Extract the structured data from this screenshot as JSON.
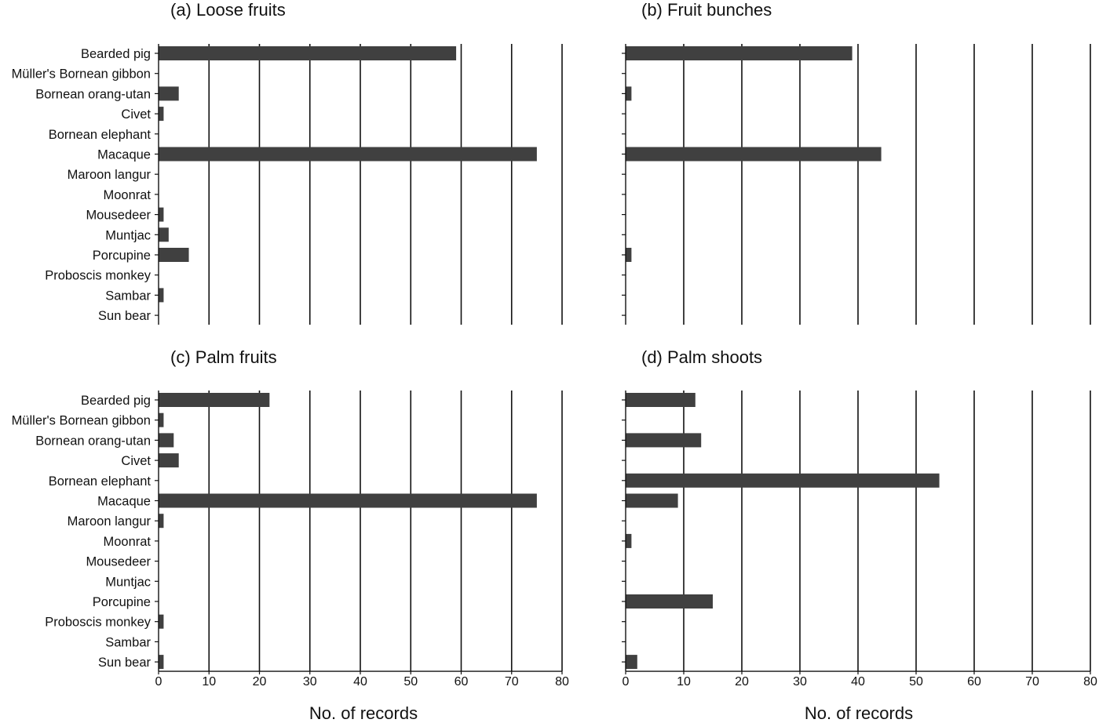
{
  "chart_data": [
    {
      "type": "bar",
      "orientation": "horizontal",
      "title": "(a) Loose fruits",
      "categories": [
        "Bearded pig",
        "Müller's Bornean gibbon",
        "Bornean orang-utan",
        "Civet",
        "Bornean elephant",
        "Macaque",
        "Maroon langur",
        "Moonrat",
        "Mousedeer",
        "Muntjac",
        "Porcupine",
        "Proboscis monkey",
        "Sambar",
        "Sun bear"
      ],
      "values": [
        59,
        0,
        4,
        1,
        0,
        75,
        0,
        0,
        1,
        2,
        6,
        0,
        1,
        0
      ],
      "xlim": [
        0,
        80
      ],
      "xticks": [
        0,
        10,
        20,
        30,
        40,
        50,
        60,
        70,
        80
      ],
      "show_tick_labels": false,
      "show_category_labels": true,
      "xlabel": "",
      "grid": "vertical",
      "bar_color": "#404040"
    },
    {
      "type": "bar",
      "orientation": "horizontal",
      "title": "(b) Fruit bunches",
      "categories": [
        "Bearded pig",
        "Müller's Bornean gibbon",
        "Bornean orang-utan",
        "Civet",
        "Bornean elephant",
        "Macaque",
        "Maroon langur",
        "Moonrat",
        "Mousedeer",
        "Muntjac",
        "Porcupine",
        "Proboscis monkey",
        "Sambar",
        "Sun bear"
      ],
      "values": [
        39,
        0,
        1,
        0,
        0,
        44,
        0,
        0,
        0,
        0,
        1,
        0,
        0,
        0
      ],
      "xlim": [
        0,
        80
      ],
      "xticks": [
        0,
        10,
        20,
        30,
        40,
        50,
        60,
        70,
        80
      ],
      "show_tick_labels": false,
      "show_category_labels": false,
      "xlabel": "",
      "grid": "vertical",
      "bar_color": "#404040"
    },
    {
      "type": "bar",
      "orientation": "horizontal",
      "title": "(c) Palm fruits",
      "categories": [
        "Bearded pig",
        "Müller's Bornean gibbon",
        "Bornean orang-utan",
        "Civet",
        "Bornean elephant",
        "Macaque",
        "Maroon langur",
        "Moonrat",
        "Mousedeer",
        "Muntjac",
        "Porcupine",
        "Proboscis monkey",
        "Sambar",
        "Sun bear"
      ],
      "values": [
        22,
        1,
        3,
        4,
        0,
        75,
        1,
        0,
        0,
        0,
        0,
        1,
        0,
        1
      ],
      "xlim": [
        0,
        80
      ],
      "xticks": [
        0,
        10,
        20,
        30,
        40,
        50,
        60,
        70,
        80
      ],
      "show_tick_labels": true,
      "show_category_labels": true,
      "xlabel": "No. of records",
      "grid": "vertical",
      "bar_color": "#404040"
    },
    {
      "type": "bar",
      "orientation": "horizontal",
      "title": "(d) Palm shoots",
      "categories": [
        "Bearded pig",
        "Müller's Bornean gibbon",
        "Bornean orang-utan",
        "Civet",
        "Bornean elephant",
        "Macaque",
        "Maroon langur",
        "Moonrat",
        "Mousedeer",
        "Muntjac",
        "Porcupine",
        "Proboscis monkey",
        "Sambar",
        "Sun bear"
      ],
      "values": [
        12,
        0,
        13,
        0,
        54,
        9,
        0,
        1,
        0,
        0,
        15,
        0,
        0,
        2
      ],
      "xlim": [
        0,
        80
      ],
      "xticks": [
        0,
        10,
        20,
        30,
        40,
        50,
        60,
        70,
        80
      ],
      "show_tick_labels": true,
      "show_category_labels": false,
      "xlabel": "No. of records",
      "grid": "vertical",
      "bar_color": "#404040"
    }
  ]
}
